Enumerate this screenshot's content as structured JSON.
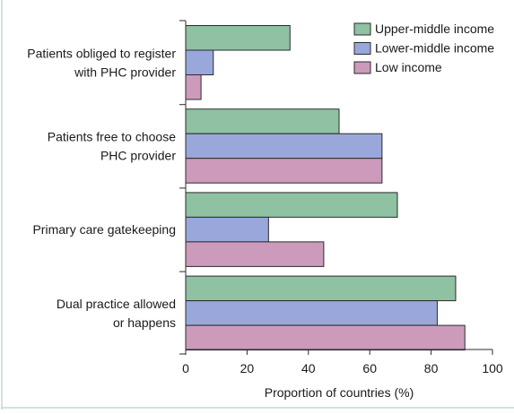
{
  "chart_data": {
    "type": "bar",
    "orientation": "horizontal",
    "categories": [
      [
        "Patients obliged to register",
        "with PHC provider"
      ],
      [
        "Patients free to choose",
        "PHC provider"
      ],
      [
        "Primary care gatekeeping"
      ],
      [
        "Dual practice allowed",
        "or happens"
      ]
    ],
    "series": [
      {
        "name": "Upper-middle income",
        "color": "#8fc1a3",
        "values": [
          34,
          50,
          69,
          88
        ]
      },
      {
        "name": "Lower-middle income",
        "color": "#9aa7db",
        "values": [
          9,
          64,
          27,
          82
        ]
      },
      {
        "name": "Low income",
        "color": "#cc9bbb",
        "values": [
          5,
          64,
          45,
          91
        ]
      }
    ],
    "xlabel": "Proportion of countries (%)",
    "xlim": [
      0,
      100
    ],
    "xticks": [
      0,
      20,
      40,
      60,
      80,
      100
    ],
    "legend_position": "top-right",
    "grid": false
  }
}
